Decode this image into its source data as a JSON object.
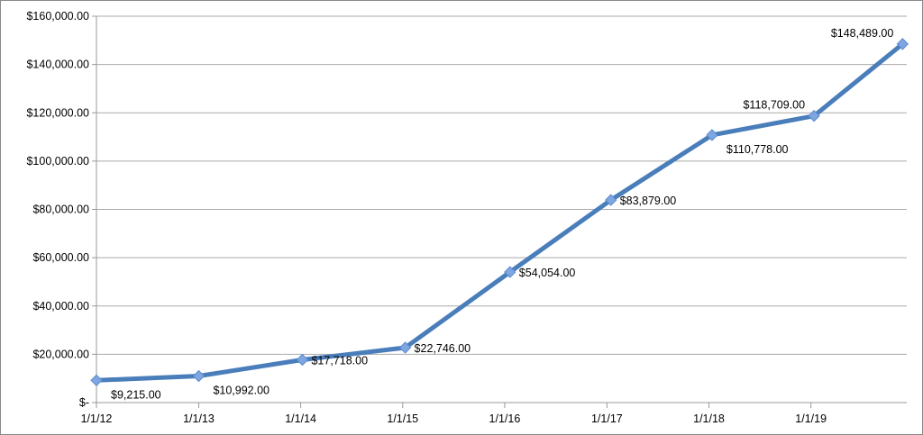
{
  "chart_data": {
    "type": "line",
    "title": "",
    "xlabel": "",
    "ylabel": "",
    "x_tick_labels": [
      "1/1/12",
      "1/1/13",
      "1/1/14",
      "1/1/15",
      "1/1/16",
      "1/1/17",
      "1/1/18",
      "1/1/19"
    ],
    "x_ticks": [
      "2012-01-01",
      "2013-01-01",
      "2014-01-01",
      "2015-01-01",
      "2016-01-01",
      "2017-01-01",
      "2018-01-01",
      "2019-01-01"
    ],
    "xlim": [
      "2012-01-01",
      "2019-12-10"
    ],
    "y_tick_labels": [
      "$-",
      "$20,000.00",
      "$40,000.00",
      "$60,000.00",
      "$80,000.00",
      "$100,000.00",
      "$120,000.00",
      "$140,000.00",
      "$160,000.00"
    ],
    "ylim": [
      0,
      160000
    ],
    "grid": true,
    "legend": "none",
    "series": [
      {
        "color": "#4a7ebb",
        "marker_color": "#7ea6e0",
        "marker": "diamond",
        "x": [
          "2012-01-01",
          "2013-01-01",
          "2014-01-07",
          "2015-01-10",
          "2016-01-20",
          "2017-01-15",
          "2018-01-12",
          "2019-01-12",
          "2019-11-25"
        ],
        "values": [
          9215,
          10992,
          17718,
          22746,
          54054,
          83879,
          110778,
          118709,
          148489
        ],
        "labels": [
          "$9,215.00",
          "$10,992.00",
          "$17,718.00",
          "$22,746.00",
          "$54,054.00",
          "$83,879.00",
          "$110,778.00",
          "$118,709.00",
          "$148,489.00"
        ],
        "label_positions": [
          "below-right",
          "below-right",
          "right",
          "right",
          "right",
          "right",
          "below-right",
          "above-left",
          "above-left"
        ]
      }
    ]
  }
}
